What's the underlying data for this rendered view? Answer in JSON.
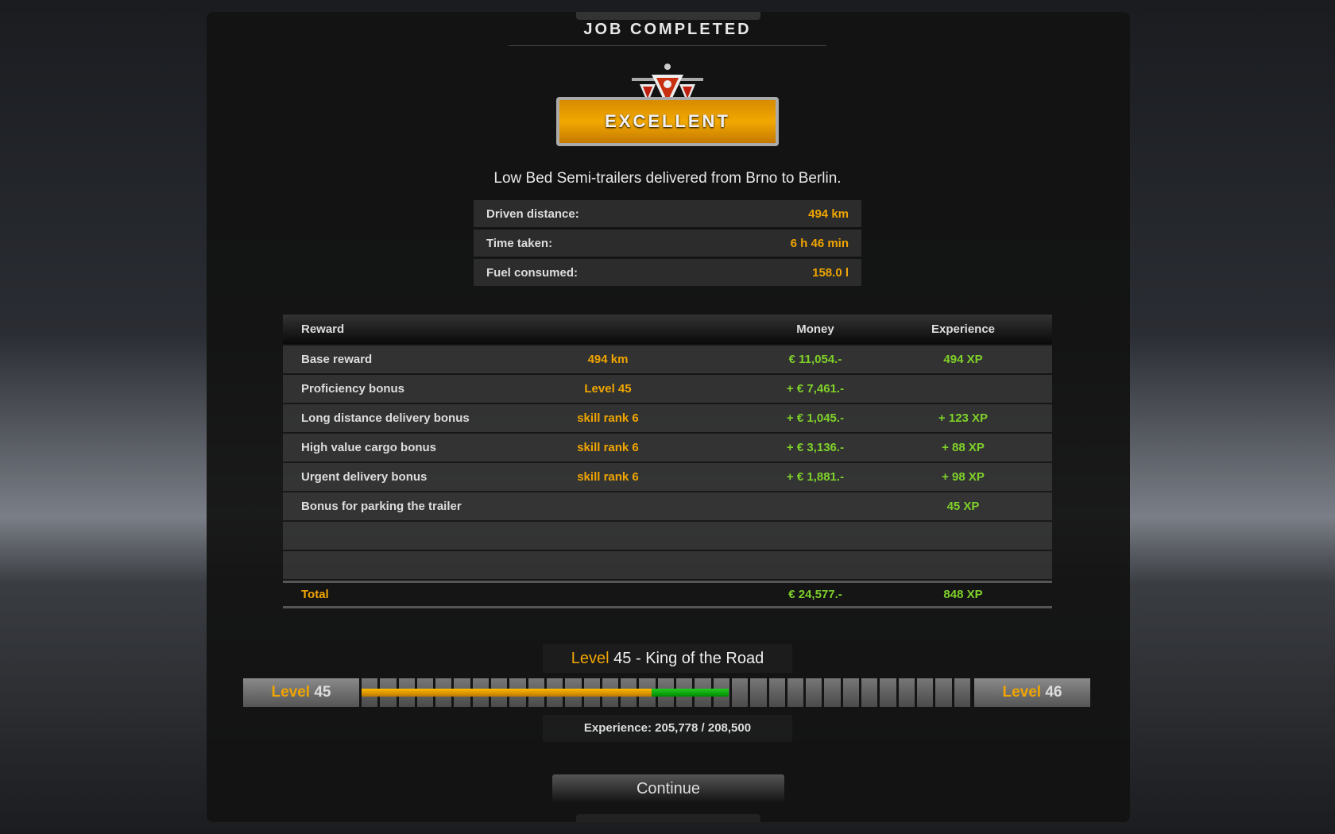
{
  "title": "JOB COMPLETED",
  "badge": "EXCELLENT",
  "subtitle": "Low Bed Semi-trailers delivered from Brno to Berlin.",
  "stats": [
    {
      "label": "Driven distance:",
      "value": "494 km"
    },
    {
      "label": "Time taken:",
      "value": "6 h 46 min"
    },
    {
      "label": "Fuel consumed:",
      "value": "158.0 l"
    }
  ],
  "table": {
    "headers": [
      "Reward",
      "",
      "Money",
      "Experience"
    ],
    "rows": [
      [
        "Base reward",
        "494 km",
        "€ 11,054.-",
        "494 XP"
      ],
      [
        "Proficiency bonus",
        "Level 45",
        "+ € 7,461.-",
        ""
      ],
      [
        "Long distance delivery bonus",
        "skill rank 6",
        "+ € 1,045.-",
        "+ 123 XP"
      ],
      [
        "High value cargo bonus",
        "skill rank 6",
        "+ € 3,136.-",
        "+ 88 XP"
      ],
      [
        "Urgent delivery bonus",
        "skill rank 6",
        "+ € 1,881.-",
        "+ 98 XP"
      ],
      [
        "Bonus for parking the trailer",
        "",
        "",
        "45 XP"
      ],
      [
        "",
        "",
        "",
        ""
      ],
      [
        "",
        "",
        "",
        ""
      ]
    ],
    "total": [
      "Total",
      "",
      "€ 24,577.-",
      "848 XP"
    ]
  },
  "level": {
    "title_word": "Level",
    "title_num": "45",
    "title_rest": " - King of the Road",
    "left_word": "Level",
    "left_num": "45",
    "right_word": "Level",
    "right_num": "46",
    "progress_previous": 0.477,
    "progress_new": 0.603,
    "experience": "Experience: 205,778 / 208,500"
  },
  "continue": "Continue",
  "colors": {
    "accent": "#f0a500",
    "gain": "#7fd12a",
    "new_xp": "#1fa81f"
  }
}
